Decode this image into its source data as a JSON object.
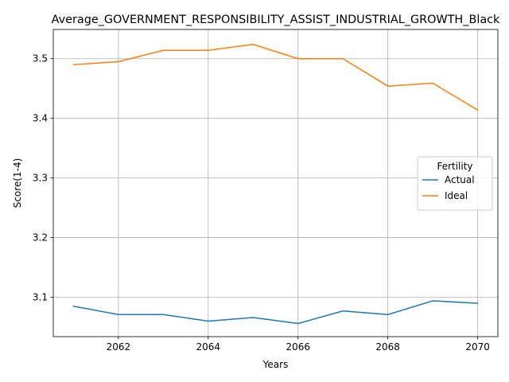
{
  "chart_data": {
    "type": "line",
    "title": "Average_GOVERNMENT_RESPONSIBILITY_ASSIST_INDUSTRIAL_GROWTH_Black",
    "xlabel": "Years",
    "ylabel": "Score(1-4)",
    "x": [
      2061,
      2062,
      2063,
      2064,
      2065,
      2066,
      2067,
      2068,
      2069,
      2070
    ],
    "xlim": [
      2060.55,
      2070.45
    ],
    "ylim": [
      3.034,
      3.549
    ],
    "xticks": [
      2062,
      2064,
      2066,
      2068,
      2070
    ],
    "yticks": [
      3.1,
      3.2,
      3.3,
      3.4,
      3.5
    ],
    "grid": true,
    "legend": {
      "title": "Fertility",
      "placement": "center-right"
    },
    "series": [
      {
        "name": "Actual",
        "color": "#1f77b4",
        "values": [
          3.085,
          3.071,
          3.071,
          3.06,
          3.066,
          3.056,
          3.077,
          3.071,
          3.094,
          3.09
        ]
      },
      {
        "name": "Ideal",
        "color": "#ff7f0e",
        "values": [
          3.49,
          3.495,
          3.514,
          3.514,
          3.524,
          3.5,
          3.5,
          3.454,
          3.459,
          3.414
        ]
      }
    ]
  }
}
